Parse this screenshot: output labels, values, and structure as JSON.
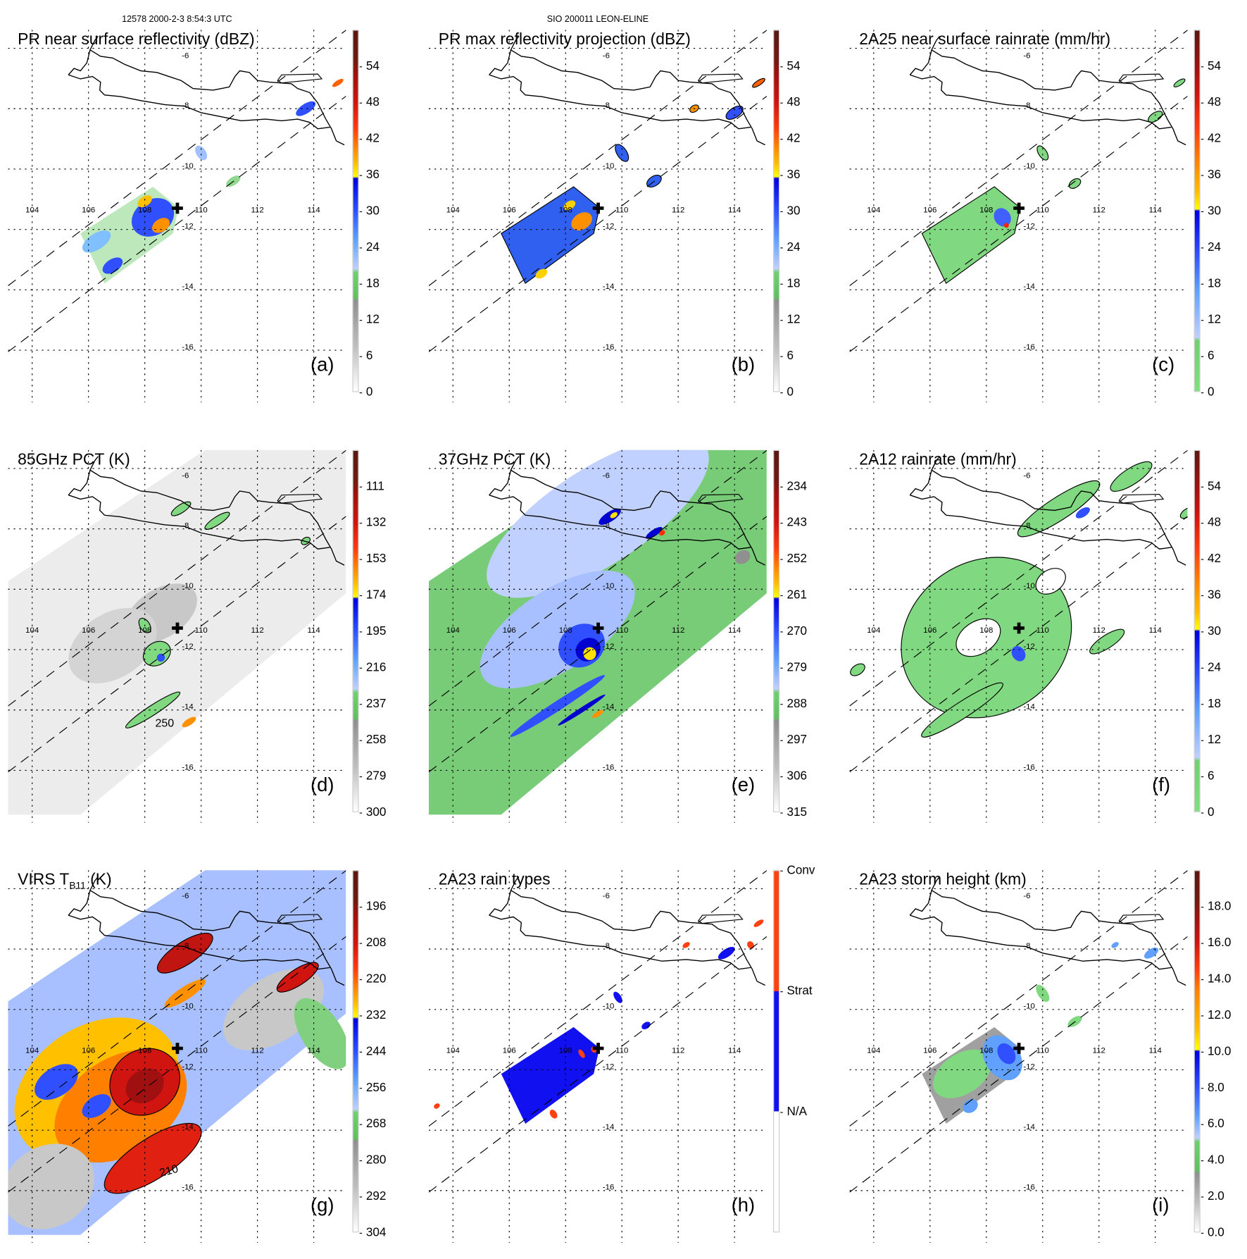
{
  "header": {
    "orbit_time": "12578 2000-2-3 8:54:3 UTC",
    "storm": "SIO 200011 LEON-ELINE"
  },
  "map": {
    "lon_labels": [
      "104",
      "106",
      "108",
      "110",
      "112",
      "114"
    ],
    "lat_labels": [
      "-6",
      "-8",
      "-10",
      "-12",
      "-14",
      "-16"
    ],
    "center_marker": "✚"
  },
  "panels": [
    {
      "id": "a",
      "title": "PR near surface reflectivity (dBZ)",
      "letter": "(a)",
      "scale": "ref",
      "labels": [
        "54",
        "48",
        "42",
        "36",
        "30",
        "24",
        "18",
        "12",
        "6",
        "0"
      ]
    },
    {
      "id": "b",
      "title": "PR max reflectivity projection (dBZ)",
      "letter": "(b)",
      "scale": "ref",
      "labels": [
        "54",
        "48",
        "42",
        "36",
        "30",
        "24",
        "18",
        "12",
        "6",
        "0"
      ]
    },
    {
      "id": "c",
      "title": "2A25 near surface rainrate (mm/hr)",
      "letter": "(c)",
      "scale": "rain",
      "labels": [
        "54",
        "48",
        "42",
        "36",
        "30",
        "24",
        "18",
        "12",
        "6",
        "0"
      ]
    },
    {
      "id": "d",
      "title": "85GHz PCT (K)",
      "letter": "(d)",
      "scale": "ref",
      "labels": [
        "111",
        "132",
        "153",
        "174",
        "195",
        "216",
        "237",
        "258",
        "279",
        "300"
      ],
      "contour_label": "250"
    },
    {
      "id": "e",
      "title": "37GHz PCT (K)",
      "letter": "(e)",
      "scale": "ref",
      "labels": [
        "234",
        "243",
        "252",
        "261",
        "270",
        "279",
        "288",
        "297",
        "306",
        "315"
      ]
    },
    {
      "id": "f",
      "title": "2A12 rainrate (mm/hr)",
      "letter": "(f)",
      "scale": "rain",
      "labels": [
        "54",
        "48",
        "42",
        "36",
        "30",
        "24",
        "18",
        "12",
        "6",
        "0"
      ]
    },
    {
      "id": "g",
      "title": "VIRS T",
      "title_sub": "B11",
      "title_suffix": " (K)",
      "letter": "(g)",
      "scale": "ref",
      "labels": [
        "196",
        "208",
        "220",
        "232",
        "244",
        "256",
        "268",
        "280",
        "292",
        "304"
      ],
      "contour_label": "210"
    },
    {
      "id": "h",
      "title": "2A23 rain types",
      "letter": "(h)",
      "scale": "type",
      "labels": [
        "Conv",
        "Strat",
        "N/A"
      ]
    },
    {
      "id": "i",
      "title": "2A23 storm height (km)",
      "letter": "(i)",
      "scale": "height",
      "labels": [
        "18.0",
        "16.0",
        "14.0",
        "12.0",
        "10.0",
        "8.0",
        "6.0",
        "4.0",
        "2.0",
        "0.0"
      ]
    }
  ],
  "colors": {
    "convective": "#ff4010",
    "stratiform": "#1010f0",
    "coast": "#000000"
  }
}
